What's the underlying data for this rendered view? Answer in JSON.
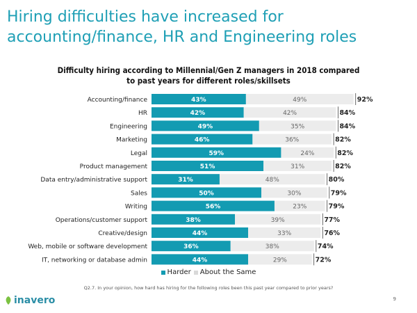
{
  "slide": {
    "title_line1": "Hiring difficulties have increased for",
    "title_line2": "accounting/finance, HR and Engineering roles",
    "footnote": "Q2.7. In your opinion, how hard has hiring for the following roles been this past year compared to prior years?",
    "page_number": "9",
    "logo_text": "inavero"
  },
  "colors": {
    "title": "#1e9fb5",
    "harder": "#139bb2",
    "same": "#ececec",
    "logo": "#2b8ea6",
    "logo_leaf": "#7cc242"
  },
  "chart_data": {
    "type": "bar",
    "orientation": "horizontal",
    "stacked": true,
    "title_line1": "Difficulty hiring according to Millennial/Gen Z managers in 2018 compared",
    "title_line2": "to past years for different roles/skillsets",
    "categories": [
      "Accounting/finance",
      "HR",
      "Engineering",
      "Marketing",
      "Legal",
      "Product management",
      "Data entry/administrative support",
      "Sales",
      "Writing",
      "Operations/customer support",
      "Creative/design",
      "Web, mobile or software development",
      "IT, networking or database admin"
    ],
    "series": [
      {
        "name": "Harder",
        "values": [
          43,
          42,
          49,
          46,
          59,
          51,
          31,
          50,
          56,
          38,
          44,
          36,
          44
        ]
      },
      {
        "name": "About the Same",
        "values": [
          49,
          42,
          35,
          36,
          24,
          31,
          48,
          30,
          23,
          39,
          33,
          38,
          29
        ]
      }
    ],
    "totals": [
      92,
      84,
      84,
      82,
      82,
      82,
      80,
      79,
      79,
      77,
      76,
      74,
      72
    ],
    "value_suffix": "%",
    "xlim": [
      0,
      100
    ],
    "legend_position": "bottom",
    "grid": false
  }
}
